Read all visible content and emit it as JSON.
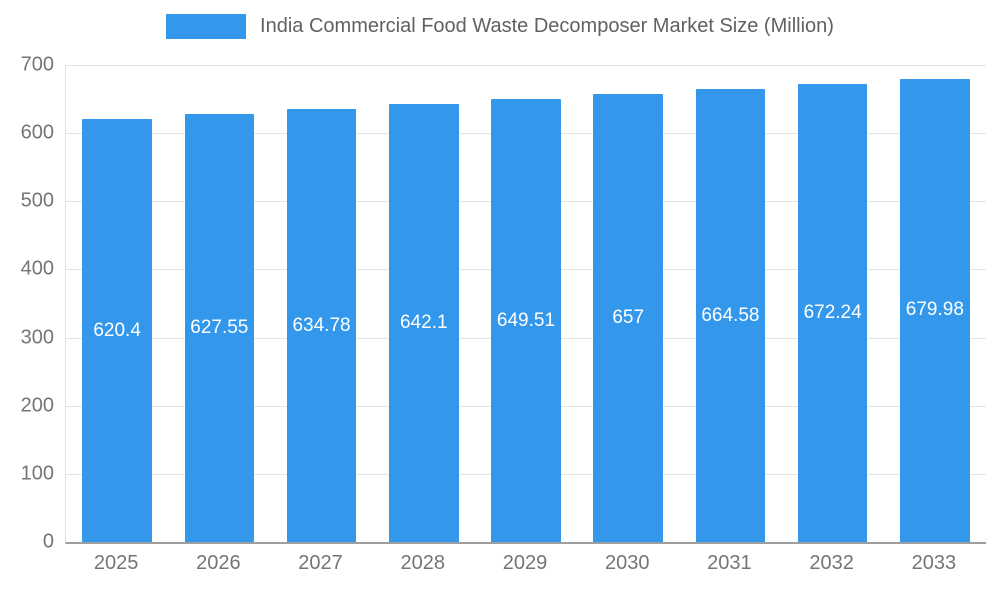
{
  "chart_data": {
    "type": "bar",
    "title": "India Commercial Food Waste Decomposer Market Size (Million)",
    "categories": [
      "2025",
      "2026",
      "2027",
      "2028",
      "2029",
      "2030",
      "2031",
      "2032",
      "2033"
    ],
    "values": [
      620.4,
      627.55,
      634.78,
      642.1,
      649.51,
      657,
      664.58,
      672.24,
      679.98
    ],
    "value_labels": [
      "620.4",
      "627.55",
      "634.78",
      "642.1",
      "649.51",
      "657",
      "664.58",
      "672.24",
      "679.98"
    ],
    "xlabel": "",
    "ylabel": "",
    "ylim": [
      0,
      700
    ],
    "yticks": [
      0,
      100,
      200,
      300,
      400,
      500,
      600,
      700
    ],
    "grid": "horizontal",
    "legend_position": "top-center",
    "bar_color": "#3398EC",
    "value_label_color": "#ffffff",
    "axis_text_color": "#757575",
    "gridline_color": "#e3e3e3",
    "background_color": "#ffffff"
  }
}
